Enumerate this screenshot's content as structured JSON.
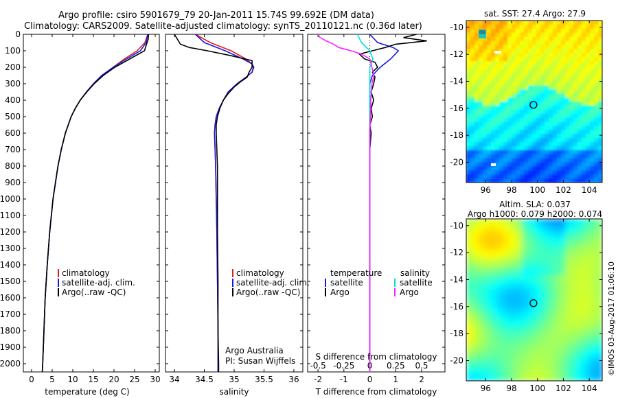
{
  "title": {
    "line1": "Argo profile: csiro 5901679_79 20-Jan-2011 15.74S 99.692E (DM data)",
    "line2": "Climatology: CARS2009. Satellite-adjusted climatology: synTS_20110121.nc (0.36d later)"
  },
  "depth_ticks": [
    0,
    100,
    200,
    300,
    400,
    500,
    600,
    700,
    800,
    900,
    1000,
    1100,
    1200,
    1300,
    1400,
    1500,
    1600,
    1700,
    1800,
    1900,
    2000
  ],
  "legend_profile": [
    "climatology",
    "satellite-adj. clim.",
    "Argo(..raw -QC)"
  ],
  "legend_diff": {
    "temp_header": "temperature",
    "sal_header": "salinity",
    "satellite": "satellite",
    "argo": "Argo"
  },
  "credit": {
    "line1": "Argo Australia",
    "line2": "PI: Susan Wijffels"
  },
  "colors": {
    "clim": "#e02020",
    "sat": "#1818e0",
    "argo": "#000000",
    "sal_sat": "#00e0e0",
    "sal_argo": "#ff20ff"
  },
  "chart_data": [
    {
      "type": "line",
      "name": "temperature",
      "xlabel": "temperature (deg C)",
      "xlim": [
        -2,
        31
      ],
      "ylim": [
        0,
        2050
      ],
      "xticks": [
        0,
        5,
        10,
        15,
        20,
        25,
        30
      ],
      "series": [
        {
          "name": "climatology",
          "depth": [
            0,
            50,
            100,
            150,
            200,
            250,
            300,
            350,
            400,
            450,
            500,
            600,
            700,
            800,
            900,
            1000,
            1200,
            1400,
            1600,
            1800,
            2000,
            2050
          ],
          "values": [
            28.2,
            27.5,
            25.6,
            22.5,
            19.8,
            17.2,
            15.1,
            13.3,
            11.8,
            10.6,
            9.6,
            8.2,
            7.2,
            6.4,
            5.8,
            5.2,
            4.4,
            3.8,
            3.3,
            3.0,
            2.7,
            2.6
          ]
        },
        {
          "name": "satellite-adj. clim.",
          "depth": [
            0,
            50,
            100,
            150,
            200,
            250,
            300,
            350,
            400,
            450,
            500,
            600,
            700,
            800,
            900,
            1000,
            1200,
            1400,
            1600,
            1800,
            2000,
            2050
          ],
          "values": [
            28.2,
            27.8,
            26.4,
            23.0,
            19.8,
            17.0,
            15.0,
            13.3,
            11.8,
            10.6,
            9.6,
            8.2,
            7.2,
            6.4,
            5.8,
            5.2,
            4.4,
            3.8,
            3.3,
            3.0,
            2.7,
            2.6
          ]
        },
        {
          "name": "Argo",
          "depth": [
            0,
            30,
            60,
            100,
            150,
            200,
            250,
            300,
            350,
            400,
            450,
            500,
            600,
            700,
            800,
            900,
            1000,
            1200,
            1400,
            1600,
            1800,
            2000,
            2050
          ],
          "values": [
            28.4,
            28.3,
            27.9,
            27.4,
            23.8,
            20.2,
            17.4,
            15.2,
            13.4,
            11.8,
            10.6,
            9.6,
            8.2,
            7.2,
            6.4,
            5.8,
            5.2,
            4.4,
            3.8,
            3.3,
            3.0,
            2.7,
            2.6
          ]
        }
      ]
    },
    {
      "type": "line",
      "name": "salinity",
      "xlabel": "salinity",
      "xlim": [
        33.85,
        36.15
      ],
      "ylim": [
        0,
        2050
      ],
      "xticks": [
        34,
        34.5,
        35,
        35.5,
        36
      ],
      "xtick_labels": [
        "34",
        "34.5",
        "35",
        "35.5",
        "36"
      ],
      "series": [
        {
          "name": "climatology",
          "depth": [
            0,
            50,
            100,
            150,
            180,
            200,
            230,
            260,
            300,
            350,
            400,
            450,
            500,
            550,
            600,
            700,
            800,
            1000,
            1200,
            1500,
            1800,
            2000,
            2050
          ],
          "values": [
            34.35,
            34.6,
            34.95,
            35.2,
            35.3,
            35.32,
            35.3,
            35.2,
            35.05,
            34.9,
            34.82,
            34.75,
            34.7,
            34.68,
            34.67,
            34.68,
            34.69,
            34.7,
            34.71,
            34.72,
            34.73,
            34.73,
            34.73
          ]
        },
        {
          "name": "satellite-adj. clim.",
          "depth": [
            0,
            50,
            100,
            150,
            180,
            200,
            230,
            260,
            300,
            350,
            400,
            450,
            500,
            550,
            600,
            700,
            800,
            1000,
            1200,
            1500,
            1800,
            2000,
            2050
          ],
          "values": [
            34.35,
            34.5,
            34.85,
            35.15,
            35.3,
            35.33,
            35.3,
            35.2,
            35.05,
            34.9,
            34.82,
            34.75,
            34.7,
            34.68,
            34.67,
            34.68,
            34.69,
            34.7,
            34.71,
            34.72,
            34.73,
            34.73,
            34.73
          ]
        },
        {
          "name": "Argo",
          "depth": [
            0,
            30,
            60,
            80,
            100,
            130,
            160,
            200,
            230,
            260,
            290,
            320,
            360,
            400,
            450,
            500,
            550,
            600,
            700,
            800,
            900,
            1000,
            1200,
            1500,
            1800,
            2000,
            2050
          ],
          "values": [
            34.0,
            34.05,
            34.1,
            34.25,
            34.55,
            34.95,
            35.3,
            35.3,
            35.25,
            35.22,
            35.1,
            35.0,
            34.9,
            34.82,
            34.76,
            34.72,
            34.7,
            34.7,
            34.71,
            34.72,
            34.72,
            34.72,
            34.72,
            34.73,
            34.73,
            34.74,
            34.74
          ]
        }
      ]
    },
    {
      "type": "line",
      "name": "differences",
      "xlabel": "T difference from climatology",
      "xlabel2": "S difference from climatology",
      "xlim": [
        -2.4,
        2.9
      ],
      "ylim": [
        0,
        2050
      ],
      "xticks": [
        -2,
        -1,
        0,
        1,
        2
      ],
      "sticks": [
        -0.5,
        -0.25,
        0,
        0.25,
        0.5
      ],
      "stick_labels": [
        "-0.5",
        "-0.25",
        "0",
        "0.25",
        "0.5"
      ],
      "series": [
        {
          "name": "temperature satellite",
          "depth": [
            0,
            50,
            80,
            100,
            150,
            200,
            250,
            300,
            400,
            500,
            700,
            1000,
            1500,
            2050
          ],
          "values": [
            0.0,
            0.3,
            0.9,
            1.1,
            0.8,
            0.4,
            0.1,
            0.0,
            0.0,
            0.0,
            0.0,
            0.0,
            0.0,
            0.0
          ]
        },
        {
          "name": "temperature Argo",
          "depth": [
            0,
            20,
            40,
            60,
            80,
            100,
            120,
            150,
            170,
            200,
            230,
            260,
            300,
            350,
            400,
            450,
            500,
            550,
            600,
            700,
            800,
            1000,
            1500,
            2050
          ],
          "values": [
            1.8,
            1.3,
            2.2,
            1.0,
            0.6,
            0.1,
            -0.4,
            -0.2,
            0.2,
            0.3,
            0.1,
            0.2,
            0.15,
            0.05,
            0.15,
            0.05,
            0.1,
            0.0,
            0.05,
            0.0,
            0.0,
            0.0,
            0.0,
            0.0
          ]
        },
        {
          "name": "salinity satellite",
          "depth": [
            0,
            50,
            100,
            150,
            200,
            300,
            400,
            600,
            800,
            1000,
            1500,
            2050
          ],
          "values": [
            -0.12,
            -0.08,
            0.0,
            0.03,
            0.0,
            0.0,
            0.0,
            0.0,
            0.0,
            0.0,
            0.0,
            0.0
          ]
        },
        {
          "name": "salinity Argo",
          "depth": [
            0,
            20,
            40,
            60,
            80,
            100,
            120,
            150,
            200,
            250,
            300,
            400,
            600,
            800,
            1000,
            1500,
            2050
          ],
          "values": [
            -0.5,
            -0.48,
            -0.42,
            -0.35,
            -0.3,
            -0.18,
            -0.08,
            0.0,
            0.02,
            0.04,
            0.02,
            0.01,
            0.0,
            0.0,
            0.0,
            0.0,
            0.0
          ]
        }
      ]
    },
    {
      "type": "heatmap",
      "name": "sst-map",
      "title": "sat. SST: 27.4 Argo: 27.9",
      "xlim": [
        94.5,
        105
      ],
      "ylim": [
        -21.5,
        -9.5
      ],
      "xticks": [
        96,
        98,
        100,
        102,
        104
      ],
      "yticks": [
        -10,
        -12,
        -14,
        -16,
        -18,
        -20
      ],
      "argo_position": {
        "lon": 99.692,
        "lat": -15.74
      }
    },
    {
      "type": "heatmap",
      "name": "sla-map",
      "title1": "Altim. SLA: 0.037",
      "title2": "Argo h1000: 0.079 h2000: 0.074",
      "xlim": [
        94.5,
        105
      ],
      "ylim": [
        -21.5,
        -9.5
      ],
      "xticks": [
        96,
        98,
        100,
        102,
        104
      ],
      "yticks": [
        -10,
        -12,
        -14,
        -16,
        -18,
        -20
      ],
      "argo_position": {
        "lon": 99.692,
        "lat": -15.74
      }
    }
  ],
  "stamp": "©IMOS 03-Aug-2017 01:06:10"
}
